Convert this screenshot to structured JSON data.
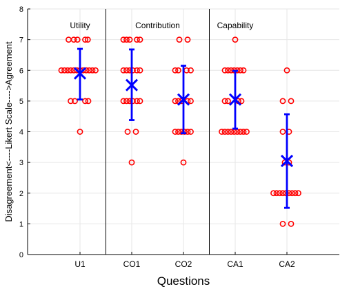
{
  "chart_data": {
    "type": "scatter",
    "xlabel": "Questions",
    "ylabel": "Disagreement<----Likert Scale---->Agreement",
    "ylim": [
      0,
      8
    ],
    "yticks": [
      "0",
      "1",
      "2",
      "3",
      "4",
      "5",
      "6",
      "7",
      "8"
    ],
    "categories": [
      "U1",
      "CO1",
      "CO2",
      "CA1",
      "CA2"
    ],
    "grid": true,
    "section_labels": [
      {
        "label": "Utility",
        "category_index": 0
      },
      {
        "label": "Contribution",
        "category_index": 1.5
      },
      {
        "label": "Capability",
        "category_index": 3
      }
    ],
    "section_dividers_after_category": [
      0,
      2
    ],
    "series": [
      {
        "category": "U1",
        "points": [
          {
            "value": 7,
            "jitter": [
              -0.22,
              -0.12,
              -0.05,
              0.1,
              0.15
            ]
          },
          {
            "value": 6,
            "jitter": [
              -0.36,
              -0.3,
              -0.24,
              -0.18,
              -0.12,
              -0.06,
              0,
              0.06,
              0.12,
              0.18,
              0.24,
              0.3
            ]
          },
          {
            "value": 5,
            "jitter": [
              -0.18,
              -0.1,
              0.1,
              0.16
            ]
          },
          {
            "value": 4,
            "jitter": [
              0
            ]
          }
        ],
        "mean": 5.9,
        "ci": [
          5.05,
          6.7
        ]
      },
      {
        "category": "CO1",
        "points": [
          {
            "value": 7,
            "jitter": [
              -0.16,
              -0.1,
              -0.04,
              0.1,
              0.16
            ]
          },
          {
            "value": 6,
            "jitter": [
              -0.16,
              -0.1,
              -0.04,
              0.02,
              0.1,
              0.16
            ]
          },
          {
            "value": 5,
            "jitter": [
              -0.16,
              -0.1,
              -0.04,
              0.02,
              0.1,
              0.16
            ]
          },
          {
            "value": 4,
            "jitter": [
              -0.08,
              0.08
            ]
          },
          {
            "value": 3,
            "jitter": [
              0
            ]
          }
        ],
        "mean": 5.52,
        "ci": [
          4.38,
          6.68
        ]
      },
      {
        "category": "CO2",
        "points": [
          {
            "value": 7,
            "jitter": [
              -0.08,
              0.08
            ]
          },
          {
            "value": 6,
            "jitter": [
              -0.16,
              -0.1,
              0.06,
              0.14
            ]
          },
          {
            "value": 5,
            "jitter": [
              -0.16,
              -0.1,
              -0.04,
              0.08,
              0.14
            ]
          },
          {
            "value": 4,
            "jitter": [
              -0.16,
              -0.1,
              -0.04,
              0.02,
              0.08,
              0.14
            ]
          },
          {
            "value": 3,
            "jitter": [
              0
            ]
          }
        ],
        "mean": 5.05,
        "ci": [
          3.95,
          6.15
        ]
      },
      {
        "category": "CA1",
        "points": [
          {
            "value": 7,
            "jitter": [
              0
            ]
          },
          {
            "value": 6,
            "jitter": [
              -0.2,
              -0.14,
              -0.08,
              -0.02,
              0.04,
              0.1,
              0.16
            ]
          },
          {
            "value": 5,
            "jitter": [
              -0.2,
              -0.14,
              0.06,
              0.12
            ]
          },
          {
            "value": 4,
            "jitter": [
              -0.26,
              -0.2,
              -0.14,
              -0.08,
              -0.02,
              0.04,
              0.1,
              0.16,
              0.22
            ]
          }
        ],
        "mean": 5.05,
        "ci": [
          4.1,
          5.98
        ]
      },
      {
        "category": "CA2",
        "points": [
          {
            "value": 6,
            "jitter": [
              0
            ]
          },
          {
            "value": 5,
            "jitter": [
              -0.08,
              0.08
            ]
          },
          {
            "value": 4,
            "jitter": [
              -0.08,
              0.04
            ]
          },
          {
            "value": 3,
            "jitter": [
              -0.04,
              0.04
            ]
          },
          {
            "value": 2,
            "jitter": [
              -0.26,
              -0.2,
              -0.14,
              -0.08,
              -0.02,
              0.04,
              0.1,
              0.16,
              0.22
            ]
          },
          {
            "value": 1,
            "jitter": [
              -0.08,
              0.08
            ]
          }
        ],
        "mean": 3.05,
        "ci": [
          1.52,
          4.57
        ]
      }
    ]
  }
}
